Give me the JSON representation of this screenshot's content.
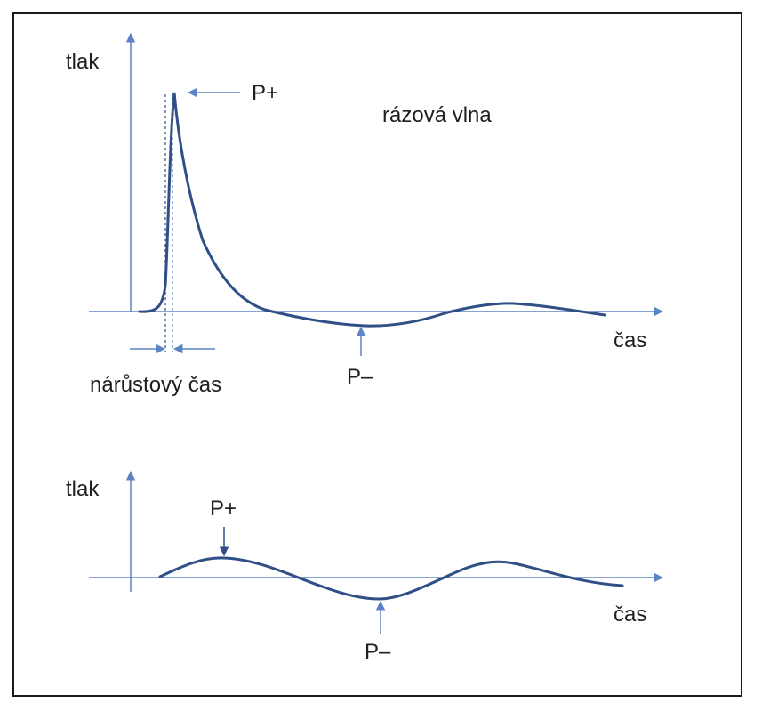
{
  "colors": {
    "axis": "#5b84c4",
    "curve": "#2f4f86",
    "text": "#1f1f1f",
    "border": "#1a1a1a"
  },
  "top": {
    "ylabel": "tlak",
    "xlabel": "čas",
    "title": "rázová vlna",
    "peak_label": "P+",
    "trough_label": "P–",
    "rise_label": "nárůstový čas"
  },
  "bottom": {
    "ylabel": "tlak",
    "xlabel": "čas",
    "peak_label": "P+",
    "trough_label": "P–"
  }
}
